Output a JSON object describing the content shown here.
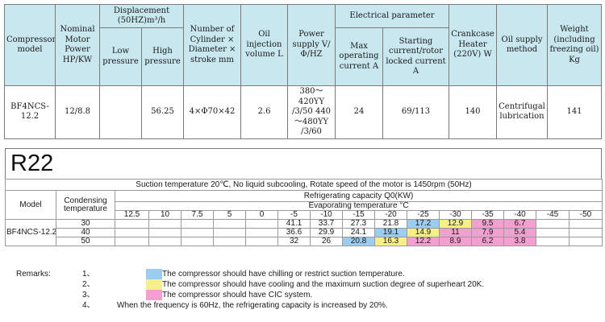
{
  "spec": {
    "headers": {
      "model": "Compressor model",
      "nominal": "Nominal Motor Power HP/KW",
      "displacement": "Displacement (50HZ)m³/h",
      "low": "Low pressure",
      "high": "High pressure",
      "cylinder": "Number of Cylinder × Diameter × stroke mm",
      "oil_volume": "Oil injection volume L",
      "power_supply": "Power supply V/Φ/HZ",
      "electrical": "Electrical parameter",
      "max_current": "Max operating current A",
      "starting": "Starting current/rotor locked current A",
      "crankcase": "Crankcase Heater (220V) W",
      "oil_supply": "Oil supply method",
      "weight": "Weight (including freezing oil) Kg"
    },
    "row": {
      "model": "BF4NCS-12.2",
      "nominal": "12/8.8",
      "low": "",
      "high": "56.25",
      "cylinder": "4×Φ70×42",
      "oil_volume": "2.6",
      "power_supply": "380～420YY /3/50 440～480YY /3/60",
      "max_current": "24",
      "starting": "69/113",
      "crankcase": "140",
      "oil_supply": "Centrifugal lubrication",
      "weight": "141"
    }
  },
  "performance": {
    "title": "R22",
    "condition": "Suction temperature 20℃, No liquid subcooling, Rotate speed of the motor is 1450rpm (50Hz)",
    "model_header": "Model",
    "condensing_header": "Condensing temperature",
    "capacity_header": "Refrigerating capacity Q0(KW)",
    "evaporating_header": "Evaporating temperature °C",
    "evap_temps": [
      "12.5",
      "10",
      "7.5",
      "5",
      "0",
      "-5",
      "-10",
      "-15",
      "-20",
      "-25",
      "-30",
      "-35",
      "-40",
      "-45",
      "-50"
    ],
    "model": "BF4NCS-12.2",
    "rows": [
      {
        "cond": "30",
        "values": [
          "",
          "",
          "",
          "",
          "",
          "41.1",
          "33.7",
          "27.3",
          "21.8",
          "17.2",
          "12.9",
          "9.5",
          "6.7",
          "",
          ""
        ]
      },
      {
        "cond": "40",
        "values": [
          "",
          "",
          "",
          "",
          "",
          "36.6",
          "29.9",
          "24.1",
          "19.1",
          "14.9",
          "11",
          "7.9",
          "5.4",
          "",
          ""
        ]
      },
      {
        "cond": "50",
        "values": [
          "",
          "",
          "",
          "",
          "",
          "32",
          "26",
          "20.8",
          "16.3",
          "12.2",
          "8.9",
          "6.2",
          "3.8",
          "",
          ""
        ]
      }
    ],
    "highlights": [
      [
        "",
        "",
        "",
        "",
        "",
        "",
        "",
        "",
        "",
        "blue",
        "yellow",
        "pink",
        "pink",
        "",
        ""
      ],
      [
        "",
        "",
        "",
        "",
        "",
        "",
        "",
        "",
        "blue",
        "yellow",
        "pink",
        "pink",
        "pink",
        "",
        ""
      ],
      [
        "",
        "",
        "",
        "",
        "",
        "",
        "",
        "blue",
        "yellow",
        "pink",
        "pink",
        "pink",
        "pink",
        "",
        ""
      ]
    ],
    "colors": {
      "blue": "#9ccdf1",
      "yellow": "#f7f08a",
      "pink": "#f39fd0"
    }
  },
  "remarks": {
    "label": "Remarks:",
    "items": [
      {
        "num": "1、",
        "color": "blue",
        "text": "The compressor should have chilling or restrict suction temperature."
      },
      {
        "num": "2、",
        "color": "yellow",
        "text": "The compressor should have cooling and the maximum suction degree of superheart 20K."
      },
      {
        "num": "3、",
        "color": "pink",
        "text": "The compressor should have CIC system."
      },
      {
        "num": "4、",
        "color": "",
        "text": "When the frequency is 60Hz, the refrigerating capacity is increased by 20%."
      }
    ]
  }
}
